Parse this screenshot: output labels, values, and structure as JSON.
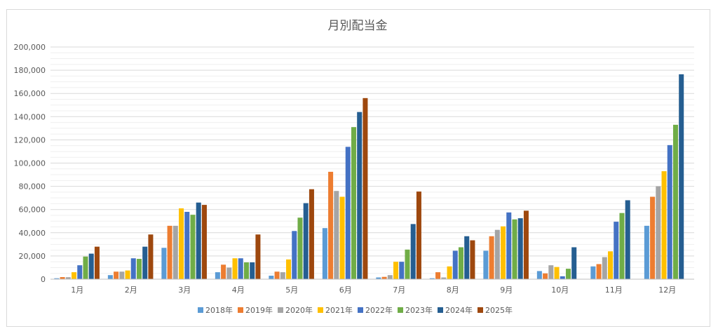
{
  "chart_data": {
    "type": "bar",
    "title": "月別配当金",
    "xlabel": "",
    "ylabel": "",
    "ylim": [
      0,
      200000
    ],
    "yticks": [
      0,
      20000,
      40000,
      60000,
      80000,
      100000,
      120000,
      140000,
      160000,
      180000,
      200000
    ],
    "ytick_labels": [
      "0",
      "20,000",
      "40,000",
      "60,000",
      "80,000",
      "100,000",
      "120,000",
      "140,000",
      "160,000",
      "180,000",
      "200,000"
    ],
    "grid": true,
    "legend_position": "bottom",
    "categories": [
      "1月",
      "2月",
      "3月",
      "4月",
      "5月",
      "6月",
      "7月",
      "8月",
      "9月",
      "10月",
      "11月",
      "12月"
    ],
    "series": [
      {
        "name": "2018年",
        "color": "#5B9BD5",
        "values": [
          800,
          3500,
          27000,
          6000,
          3000,
          44000,
          1500,
          800,
          24500,
          7000,
          11000,
          46000
        ]
      },
      {
        "name": "2019年",
        "color": "#ED7D31",
        "values": [
          1800,
          6500,
          46000,
          12500,
          6500,
          92500,
          2000,
          6000,
          37000,
          5000,
          13000,
          71000
        ]
      },
      {
        "name": "2020年",
        "color": "#A5A5A5",
        "values": [
          1700,
          6500,
          46000,
          10000,
          6000,
          76000,
          3500,
          1500,
          42500,
          12000,
          19000,
          80000
        ]
      },
      {
        "name": "2021年",
        "color": "#FFC000",
        "values": [
          6000,
          7500,
          61000,
          18000,
          17000,
          71000,
          15000,
          11000,
          45500,
          10500,
          24000,
          93000
        ]
      },
      {
        "name": "2022年",
        "color": "#4472C4",
        "values": [
          12000,
          18000,
          58000,
          18000,
          41500,
          114000,
          15000,
          24500,
          57500,
          2500,
          49500,
          115500
        ]
      },
      {
        "name": "2023年",
        "color": "#70AD47",
        "values": [
          19500,
          17500,
          55500,
          14500,
          53000,
          131000,
          25500,
          27500,
          51500,
          9000,
          57000,
          133000
        ]
      },
      {
        "name": "2024年",
        "color": "#255E91",
        "values": [
          22000,
          28000,
          66000,
          14500,
          65500,
          144000,
          47500,
          37000,
          52500,
          27500,
          68000,
          176500
        ]
      },
      {
        "name": "2025年",
        "color": "#9E480E",
        "values": [
          28000,
          38500,
          64000,
          38500,
          77500,
          156000,
          75500,
          33500,
          59000,
          0,
          0,
          0
        ]
      }
    ]
  }
}
